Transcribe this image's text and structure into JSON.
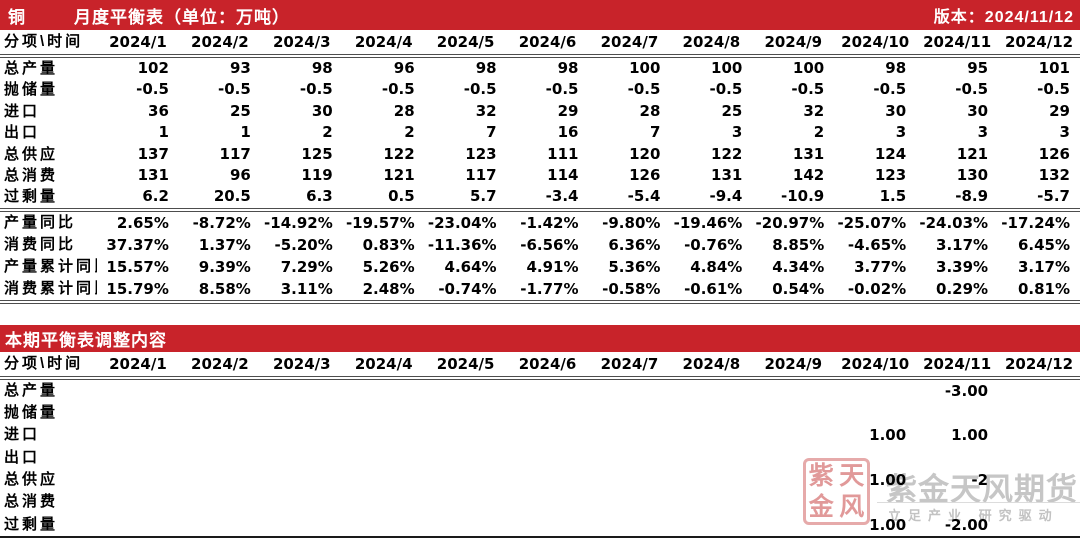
{
  "header": {
    "product": "铜",
    "title": "月度平衡表（单位：万吨）",
    "version": "版本：2024/11/12"
  },
  "section2_title": "本期平衡表调整内容",
  "colors": {
    "bar_red": "#C8232A",
    "highlight_red": "#FF0000",
    "watermark_gray": "#c6c6c6"
  },
  "table1": {
    "corner": "分项\\时间",
    "months": [
      "2024/1",
      "2024/2",
      "2024/3",
      "2024/4",
      "2024/5",
      "2024/6",
      "2024/7",
      "2024/8",
      "2024/9",
      "2024/10",
      "2024/11",
      "2024/12"
    ],
    "red_from": 9,
    "rows": [
      {
        "label": "总产量",
        "values": [
          "102",
          "93",
          "98",
          "96",
          "98",
          "98",
          "100",
          "100",
          "100",
          "98",
          "95",
          "101"
        ]
      },
      {
        "label": "抛储量",
        "values": [
          "-0.5",
          "-0.5",
          "-0.5",
          "-0.5",
          "-0.5",
          "-0.5",
          "-0.5",
          "-0.5",
          "-0.5",
          "-0.5",
          "-0.5",
          "-0.5"
        ]
      },
      {
        "label": "进口",
        "values": [
          "36",
          "25",
          "30",
          "28",
          "32",
          "29",
          "28",
          "25",
          "32",
          "30",
          "30",
          "29"
        ]
      },
      {
        "label": "出口",
        "values": [
          "1",
          "1",
          "2",
          "2",
          "7",
          "16",
          "7",
          "3",
          "2",
          "3",
          "3",
          "3"
        ]
      },
      {
        "label": "总供应",
        "values": [
          "137",
          "117",
          "125",
          "122",
          "123",
          "111",
          "120",
          "122",
          "131",
          "124",
          "121",
          "126"
        ]
      },
      {
        "label": "总消费",
        "values": [
          "131",
          "96",
          "119",
          "121",
          "117",
          "114",
          "126",
          "131",
          "142",
          "123",
          "130",
          "132"
        ]
      },
      {
        "label": "过剩量",
        "red": true,
        "values": [
          "6.2",
          "20.5",
          "6.3",
          "0.5",
          "5.7",
          "-3.4",
          "-5.4",
          "-9.4",
          "-10.9",
          "1.5",
          "-8.9",
          "-5.7"
        ]
      }
    ],
    "pct_rows": [
      {
        "label": "产量同比",
        "values": [
          "2.65%",
          "-8.72%",
          "-14.92%",
          "-19.57%",
          "-23.04%",
          "-1.42%",
          "-9.80%",
          "-19.46%",
          "-20.97%",
          "-25.07%",
          "-24.03%",
          "-17.24%"
        ]
      },
      {
        "label": "消费同比",
        "values": [
          "37.37%",
          "1.37%",
          "-5.20%",
          "0.83%",
          "-11.36%",
          "-6.56%",
          "6.36%",
          "-0.76%",
          "8.85%",
          "-4.65%",
          "3.17%",
          "6.45%"
        ]
      },
      {
        "label": "产量累计同比",
        "values": [
          "15.57%",
          "9.39%",
          "7.29%",
          "5.26%",
          "4.64%",
          "4.91%",
          "5.36%",
          "4.84%",
          "4.34%",
          "3.77%",
          "3.39%",
          "3.17%"
        ]
      },
      {
        "label": "消费累计同比",
        "values": [
          "15.79%",
          "8.58%",
          "3.11%",
          "2.48%",
          "-0.74%",
          "-1.77%",
          "-0.58%",
          "-0.61%",
          "0.54%",
          "-0.02%",
          "0.29%",
          "0.81%"
        ]
      }
    ]
  },
  "table2": {
    "corner": "分项\\时间",
    "months": [
      "2024/1",
      "2024/2",
      "2024/3",
      "2024/4",
      "2024/5",
      "2024/6",
      "2024/7",
      "2024/8",
      "2024/9",
      "2024/10",
      "2024/11",
      "2024/12"
    ],
    "all_red": true,
    "rows": [
      {
        "label": "总产量",
        "values": [
          "",
          "",
          "",
          "",
          "",
          "",
          "",
          "",
          "",
          "",
          "-3.00",
          ""
        ]
      },
      {
        "label": "抛储量",
        "values": [
          "",
          "",
          "",
          "",
          "",
          "",
          "",
          "",
          "",
          "",
          "",
          ""
        ]
      },
      {
        "label": "进口",
        "values": [
          "",
          "",
          "",
          "",
          "",
          "",
          "",
          "",
          "",
          "1.00",
          "1.00",
          ""
        ]
      },
      {
        "label": "出口",
        "values": [
          "",
          "",
          "",
          "",
          "",
          "",
          "",
          "",
          "",
          "",
          "",
          ""
        ]
      },
      {
        "label": "总供应",
        "values": [
          "",
          "",
          "",
          "",
          "",
          "",
          "",
          "",
          "",
          "1.00",
          "-2",
          ""
        ]
      },
      {
        "label": "总消费",
        "values": [
          "",
          "",
          "",
          "",
          "",
          "",
          "",
          "",
          "",
          "",
          "",
          ""
        ]
      },
      {
        "label": "过剩量",
        "values": [
          "",
          "",
          "",
          "",
          "",
          "",
          "",
          "",
          "",
          "1.00",
          "-2.00",
          ""
        ]
      }
    ]
  },
  "watermark": {
    "seal_chars": [
      "紫",
      "天",
      "金",
      "风"
    ],
    "brand": "紫金天风期货",
    "slogan": "立足产业 研究驱动"
  }
}
